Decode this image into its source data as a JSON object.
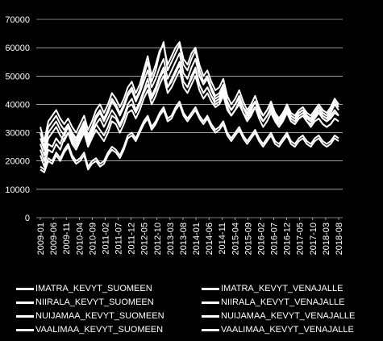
{
  "chart_data": {
    "type": "line",
    "title": "",
    "xlabel": "",
    "ylabel": "",
    "ylim": [
      0,
      70000
    ],
    "y_ticks": [
      "0",
      "10000",
      "20000",
      "30000",
      "40000",
      "50000",
      "60000",
      "70000"
    ],
    "x_tick_labels": [
      "2009-01",
      "2009-06",
      "2009-11",
      "2010-04",
      "2010-09",
      "2011-02",
      "2011-07",
      "2011-12",
      "2012-05",
      "2012-10",
      "2013-03",
      "2013-08",
      "2014-01",
      "2014-06",
      "2014-11",
      "2015-04",
      "2015-09",
      "2016-02",
      "2016-07",
      "2016-12",
      "2017-05",
      "2017-10",
      "2018-03",
      "2018-08"
    ],
    "grid": "horizontal",
    "legend_position": "bottom",
    "background": "#000000",
    "line_color": "#ffffff",
    "series": [
      {
        "name": "IMATRA_KEVYT_SUOMEEN",
        "values": [
          22000,
          18000,
          24000,
          23000,
          26000,
          24000,
          28000,
          30000,
          26000,
          24000,
          27000,
          30000,
          25000,
          28000,
          31000,
          29000,
          27000,
          30000,
          34000,
          33000,
          30000,
          33000,
          37000,
          38000,
          35000,
          38000,
          42000,
          45000,
          40000,
          43000,
          47000,
          50000,
          44000,
          46000,
          49000,
          52000,
          46000,
          44000,
          47000,
          50000,
          45000,
          42000,
          44000,
          41000,
          39000,
          40000,
          43000,
          38000,
          36000,
          38000,
          40000,
          37000,
          35000,
          37000,
          39000,
          36000,
          34000,
          36000,
          38000,
          35000,
          33000,
          35000,
          37000,
          34000,
          33000,
          35000,
          36000,
          34000,
          32000,
          34000,
          35000,
          33000,
          32000,
          33000,
          35000,
          34000
        ]
      },
      {
        "name": "IMATRA_KEVYT_VENAJALLE",
        "values": [
          24000,
          20000,
          26000,
          25000,
          28000,
          26000,
          30000,
          32000,
          28000,
          26000,
          29000,
          32000,
          27000,
          30000,
          33000,
          31000,
          29000,
          32000,
          36000,
          35000,
          32000,
          35000,
          39000,
          40000,
          37000,
          40000,
          44000,
          47000,
          42000,
          45000,
          49000,
          52000,
          46000,
          48000,
          51000,
          54000,
          48000,
          46000,
          49000,
          52000,
          47000,
          44000,
          46000,
          43000,
          41000,
          42000,
          45000,
          40000,
          38000,
          40000,
          42000,
          39000,
          37000,
          39000,
          41000,
          38000,
          36000,
          38000,
          40000,
          37000,
          35000,
          37000,
          39000,
          36000,
          35000,
          37000,
          38000,
          36000,
          34000,
          36000,
          37000,
          35000,
          34000,
          35000,
          37000,
          36000
        ]
      },
      {
        "name": "NIIRALA_KEVYT_SUOMEEN",
        "values": [
          17000,
          16000,
          20000,
          19000,
          22000,
          20000,
          23000,
          25000,
          21000,
          19000,
          20000,
          22000,
          17000,
          19000,
          20000,
          18000,
          19000,
          22000,
          24000,
          23000,
          21000,
          24000,
          28000,
          29000,
          27000,
          30000,
          33000,
          35000,
          31000,
          33000,
          36000,
          38000,
          34000,
          35000,
          38000,
          40000,
          36000,
          34000,
          36000,
          38000,
          35000,
          33000,
          35000,
          32000,
          30000,
          31000,
          33000,
          29000,
          27000,
          29000,
          31000,
          28000,
          26000,
          28000,
          30000,
          27000,
          25000,
          27000,
          29000,
          26000,
          25000,
          27000,
          29000,
          26000,
          25000,
          27000,
          28000,
          26000,
          25000,
          27000,
          28000,
          26000,
          25000,
          26000,
          28000,
          27000
        ]
      },
      {
        "name": "NIIRALA_KEVYT_VENAJALLE",
        "values": [
          18000,
          17000,
          21000,
          20000,
          23000,
          21000,
          24000,
          26000,
          22000,
          20000,
          21000,
          23000,
          18000,
          20000,
          21000,
          19000,
          20000,
          23000,
          25000,
          24000,
          22000,
          25000,
          29000,
          30000,
          28000,
          31000,
          34000,
          36000,
          32000,
          34000,
          37000,
          39000,
          35000,
          36000,
          39000,
          41000,
          37000,
          35000,
          37000,
          39000,
          36000,
          34000,
          36000,
          33000,
          31000,
          32000,
          34000,
          30000,
          28000,
          30000,
          32000,
          29000,
          27000,
          29000,
          31000,
          28000,
          26000,
          28000,
          30000,
          27000,
          26000,
          28000,
          30000,
          27000,
          26000,
          28000,
          29000,
          27000,
          26000,
          28000,
          29000,
          27000,
          26000,
          27000,
          29000,
          28000
        ]
      },
      {
        "name": "NUIJAMAA_KEVYT_SUOMEEN",
        "values": [
          30000,
          25000,
          32000,
          34000,
          36000,
          33000,
          31000,
          33000,
          30000,
          28000,
          31000,
          34000,
          29000,
          32000,
          36000,
          38000,
          35000,
          38000,
          42000,
          40000,
          37000,
          40000,
          44000,
          46000,
          42000,
          45000,
          50000,
          55000,
          48000,
          52000,
          58000,
          62000,
          52000,
          55000,
          58000,
          61000,
          54000,
          52000,
          56000,
          59000,
          52000,
          48000,
          50000,
          46000,
          43000,
          44000,
          47000,
          41000,
          38000,
          40000,
          43000,
          39000,
          36000,
          38000,
          41000,
          37000,
          34000,
          36000,
          39000,
          35000,
          33000,
          35000,
          38000,
          35000,
          34000,
          36000,
          37000,
          35000,
          34000,
          36000,
          38000,
          36000,
          35000,
          37000,
          40000,
          38000
        ]
      },
      {
        "name": "NUIJAMAA_KEVYT_VENAJALLE",
        "values": [
          32000,
          27000,
          34000,
          36000,
          38000,
          35000,
          33000,
          35000,
          32000,
          30000,
          33000,
          36000,
          31000,
          34000,
          38000,
          40000,
          37000,
          40000,
          44000,
          42000,
          39000,
          42000,
          46000,
          48000,
          44000,
          47000,
          52000,
          57000,
          50000,
          54000,
          59000,
          61000,
          54000,
          57000,
          60000,
          62000,
          56000,
          54000,
          58000,
          60000,
          54000,
          50000,
          52000,
          48000,
          45000,
          46000,
          49000,
          43000,
          40000,
          42000,
          45000,
          41000,
          38000,
          40000,
          43000,
          39000,
          36000,
          38000,
          41000,
          37000,
          35000,
          37000,
          40000,
          37000,
          36000,
          38000,
          39000,
          37000,
          36000,
          38000,
          40000,
          38000,
          37000,
          39000,
          42000,
          40000
        ]
      },
      {
        "name": "VAALIMAA_KEVYT_SUOMEEN",
        "values": [
          26000,
          22000,
          28000,
          30000,
          32000,
          29000,
          27000,
          30000,
          27000,
          25000,
          28000,
          31000,
          26000,
          29000,
          33000,
          35000,
          32000,
          35000,
          38000,
          36000,
          33000,
          36000,
          40000,
          42000,
          38000,
          41000,
          45000,
          49000,
          43000,
          46000,
          50000,
          53000,
          46000,
          49000,
          52000,
          55000,
          48000,
          46000,
          50000,
          53000,
          47000,
          44000,
          46000,
          43000,
          40000,
          41000,
          44000,
          39000,
          36000,
          38000,
          41000,
          37000,
          34000,
          36000,
          39000,
          35000,
          32000,
          34000,
          37000,
          34000,
          32000,
          34000,
          37000,
          34000,
          33000,
          35000,
          36000,
          34000,
          33000,
          35000,
          37000,
          35000,
          34000,
          36000,
          38000,
          36000
        ]
      },
      {
        "name": "VAALIMAA_KEVYT_VENAJALLE",
        "values": [
          28000,
          24000,
          30000,
          32000,
          34000,
          31000,
          29000,
          32000,
          29000,
          27000,
          30000,
          33000,
          28000,
          31000,
          35000,
          37000,
          34000,
          37000,
          41000,
          39000,
          36000,
          39000,
          43000,
          45000,
          41000,
          44000,
          48000,
          52000,
          46000,
          49000,
          53000,
          56000,
          49000,
          52000,
          55000,
          58000,
          51000,
          49000,
          53000,
          56000,
          50000,
          47000,
          49000,
          45000,
          42000,
          43000,
          46000,
          41000,
          38000,
          40000,
          43000,
          39000,
          36000,
          38000,
          41000,
          37000,
          34000,
          36000,
          39000,
          36000,
          34000,
          36000,
          39000,
          36000,
          35000,
          37000,
          38000,
          36000,
          35000,
          37000,
          39000,
          37000,
          36000,
          38000,
          41000,
          39000
        ]
      }
    ]
  }
}
